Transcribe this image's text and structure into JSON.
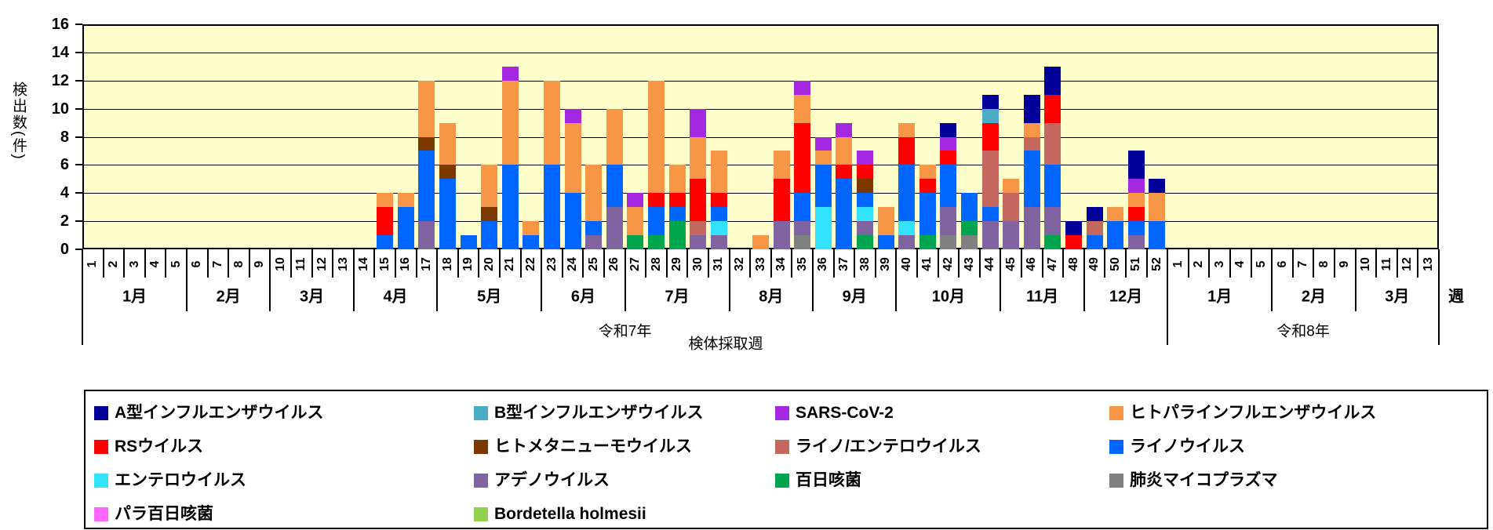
{
  "y_axis": {
    "title": "検出数(件)",
    "ticks": [
      0,
      2,
      4,
      6,
      8,
      10,
      12,
      14,
      16
    ],
    "max": 16
  },
  "x_axis": {
    "title": "検体採取週",
    "unit_label": "週",
    "years": [
      {
        "label": "令和7年",
        "weeks": [
          1,
          2,
          3,
          4,
          5,
          6,
          7,
          8,
          9,
          10,
          11,
          12,
          13,
          14,
          15,
          16,
          17,
          18,
          19,
          20,
          21,
          22,
          23,
          24,
          25,
          26,
          27,
          28,
          29,
          30,
          31,
          32,
          33,
          34,
          35,
          36,
          37,
          38,
          39,
          40,
          41,
          42,
          43,
          44,
          45,
          46,
          47,
          48,
          49,
          50,
          51,
          52
        ],
        "months": [
          {
            "label": "1月",
            "from": 1,
            "to": 5
          },
          {
            "label": "2月",
            "from": 6,
            "to": 9
          },
          {
            "label": "3月",
            "from": 10,
            "to": 13
          },
          {
            "label": "4月",
            "from": 14,
            "to": 17
          },
          {
            "label": "5月",
            "from": 18,
            "to": 22
          },
          {
            "label": "6月",
            "from": 23,
            "to": 26
          },
          {
            "label": "7月",
            "from": 27,
            "to": 31
          },
          {
            "label": "8月",
            "from": 32,
            "to": 35
          },
          {
            "label": "9月",
            "from": 36,
            "to": 39
          },
          {
            "label": "10月",
            "from": 40,
            "to": 44
          },
          {
            "label": "11月",
            "from": 45,
            "to": 48
          },
          {
            "label": "12月",
            "from": 49,
            "to": 52
          }
        ]
      },
      {
        "label": "令和8年",
        "weeks": [
          1,
          2,
          3,
          4,
          5,
          6,
          7,
          8,
          9,
          10,
          11,
          12,
          13
        ],
        "months": [
          {
            "label": "1月",
            "from": 1,
            "to": 5
          },
          {
            "label": "2月",
            "from": 6,
            "to": 9
          },
          {
            "label": "3月",
            "from": 10,
            "to": 13
          }
        ]
      }
    ]
  },
  "legend": {
    "items": [
      {
        "label": "A型インフルエンザウイルス",
        "color": "#000099"
      },
      {
        "label": "B型インフルエンザウイルス",
        "color": "#4BACC6"
      },
      {
        "label": "SARS-CoV-2",
        "color": "#A428E0"
      },
      {
        "label": "ヒトパラインフルエンザウイルス",
        "color": "#F79646"
      },
      {
        "label": "RSウイルス",
        "color": "#FF0000"
      },
      {
        "label": "ヒトメタニューモウイルス",
        "color": "#7B3900"
      },
      {
        "label": "ライノ/エンテロウイルス",
        "color": "#C4685F"
      },
      {
        "label": "ライノウイルス",
        "color": "#0066FF"
      },
      {
        "label": "エンテロウイルス",
        "color": "#33E2FC"
      },
      {
        "label": "アデノウイルス",
        "color": "#8064A2"
      },
      {
        "label": "百日咳菌",
        "color": "#00A550"
      },
      {
        "label": "肺炎マイコプラズマ",
        "color": "#808080"
      },
      {
        "label": "パラ百日咳菌",
        "color": "#FF66FF"
      },
      {
        "label": "Bordetella holmesii",
        "color": "#92D050"
      }
    ]
  },
  "chart_data": {
    "type": "bar",
    "stacked": true,
    "plot_bg": "#FFFFCC",
    "ylabel": "検出数(件)",
    "xlabel": "検体採取週",
    "ylim": [
      0,
      16
    ],
    "ytick_step": 2,
    "grid": true,
    "legend_position": "bottom",
    "stack_order_bottom_to_top": [
      "肺炎マイコプラズマ",
      "百日咳菌",
      "アデノウイルス",
      "エンテロウイルス",
      "ライノウイルス",
      "ライノ/エンテロウイルス",
      "ヒトメタニューモウイルス",
      "RSウイルス",
      "ヒトパラインフルエンザウイルス",
      "SARS-CoV-2",
      "B型インフルエンザウイルス",
      "A型インフルエンザウイルス",
      "パラ百日咳菌",
      "Bordetella holmesii"
    ],
    "values": {
      "令和7年": {
        "15": {
          "ライノウイルス": 1,
          "RSウイルス": 2,
          "ヒトパラインフルエンザウイルス": 1
        },
        "16": {
          "ライノウイルス": 3,
          "ヒトパラインフルエンザウイルス": 1
        },
        "17": {
          "アデノウイルス": 2,
          "ライノウイルス": 5,
          "ヒトメタニューモウイルス": 1,
          "ヒトパラインフルエンザウイルス": 4
        },
        "18": {
          "ライノウイルス": 5,
          "ヒトメタニューモウイルス": 1,
          "ヒトパラインフルエンザウイルス": 3
        },
        "19": {
          "ライノウイルス": 1
        },
        "20": {
          "ライノウイルス": 2,
          "ヒトメタニューモウイルス": 1,
          "ヒトパラインフルエンザウイルス": 3
        },
        "21": {
          "ライノウイルス": 6,
          "ヒトパラインフルエンザウイルス": 6,
          "SARS-CoV-2": 1
        },
        "22": {
          "ライノウイルス": 1,
          "ヒトパラインフルエンザウイルス": 1
        },
        "23": {
          "ライノウイルス": 6,
          "ヒトパラインフルエンザウイルス": 6
        },
        "24": {
          "ライノウイルス": 4,
          "ヒトパラインフルエンザウイルス": 5,
          "SARS-CoV-2": 1
        },
        "25": {
          "アデノウイルス": 1,
          "ライノウイルス": 1,
          "ヒトパラインフルエンザウイルス": 4
        },
        "26": {
          "アデノウイルス": 3,
          "ライノウイルス": 3,
          "ヒトパラインフルエンザウイルス": 4
        },
        "27": {
          "百日咳菌": 1,
          "ヒトパラインフルエンザウイルス": 2,
          "SARS-CoV-2": 1
        },
        "28": {
          "百日咳菌": 1,
          "ライノウイルス": 2,
          "RSウイルス": 1,
          "ヒトパラインフルエンザウイルス": 8
        },
        "29": {
          "百日咳菌": 2,
          "ライノウイルス": 1,
          "RSウイルス": 1,
          "ヒトパラインフルエンザウイルス": 2
        },
        "30": {
          "アデノウイルス": 1,
          "ライノ/エンテロウイルス": 1,
          "RSウイルス": 3,
          "ヒトパラインフルエンザウイルス": 3,
          "SARS-CoV-2": 2
        },
        "31": {
          "アデノウイルス": 1,
          "エンテロウイルス": 1,
          "ライノウイルス": 1,
          "RSウイルス": 1,
          "ヒトパラインフルエンザウイルス": 3
        },
        "33": {
          "ヒトパラインフルエンザウイルス": 1
        },
        "34": {
          "アデノウイルス": 2,
          "RSウイルス": 3,
          "ヒトパラインフルエンザウイルス": 2
        },
        "35": {
          "肺炎マイコプラズマ": 1,
          "アデノウイルス": 1,
          "ライノウイルス": 2,
          "RSウイルス": 5,
          "ヒトパラインフルエンザウイルス": 2,
          "SARS-CoV-2": 1
        },
        "36": {
          "エンテロウイルス": 3,
          "ライノウイルス": 3,
          "ヒトパラインフルエンザウイルス": 1,
          "SARS-CoV-2": 1
        },
        "37": {
          "ライノウイルス": 5,
          "RSウイルス": 1,
          "ヒトパラインフルエンザウイルス": 2,
          "SARS-CoV-2": 1
        },
        "38": {
          "百日咳菌": 1,
          "アデノウイルス": 1,
          "エンテロウイルス": 1,
          "ライノウイルス": 1,
          "ヒトメタニューモウイルス": 1,
          "RSウイルス": 1,
          "SARS-CoV-2": 1
        },
        "39": {
          "ライノウイルス": 1,
          "ヒトパラインフルエンザウイルス": 2
        },
        "40": {
          "アデノウイルス": 1,
          "エンテロウイルス": 1,
          "ライノウイルス": 4,
          "RSウイルス": 2,
          "ヒトパラインフルエンザウイルス": 1
        },
        "41": {
          "百日咳菌": 1,
          "ライノウイルス": 3,
          "RSウイルス": 1,
          "ヒトパラインフルエンザウイルス": 1
        },
        "42": {
          "肺炎マイコプラズマ": 1,
          "アデノウイルス": 2,
          "ライノウイルス": 3,
          "RSウイルス": 1,
          "SARS-CoV-2": 1,
          "A型インフルエンザウイルス": 1
        },
        "43": {
          "肺炎マイコプラズマ": 1,
          "百日咳菌": 1,
          "ライノウイルス": 2
        },
        "44": {
          "アデノウイルス": 2,
          "ライノウイルス": 1,
          "ライノ/エンテロウイルス": 4,
          "RSウイルス": 2,
          "B型インフルエンザウイルス": 1,
          "A型インフルエンザウイルス": 1
        },
        "45": {
          "アデノウイルス": 2,
          "ライノ/エンテロウイルス": 2,
          "ヒトパラインフルエンザウイルス": 1
        },
        "46": {
          "アデノウイルス": 3,
          "ライノウイルス": 4,
          "ライノ/エンテロウイルス": 1,
          "ヒトパラインフルエンザウイルス": 1,
          "A型インフルエンザウイルス": 2
        },
        "47": {
          "百日咳菌": 1,
          "アデノウイルス": 2,
          "ライノウイルス": 3,
          "ライノ/エンテロウイルス": 3,
          "RSウイルス": 2,
          "A型インフルエンザウイルス": 2
        },
        "48": {
          "RSウイルス": 1,
          "A型インフルエンザウイルス": 1
        },
        "49": {
          "ライノウイルス": 1,
          "ライノ/エンテロウイルス": 1,
          "A型インフルエンザウイルス": 1
        },
        "50": {
          "ライノウイルス": 2,
          "ヒトパラインフルエンザウイルス": 1
        },
        "51": {
          "アデノウイルス": 1,
          "ライノウイルス": 1,
          "RSウイルス": 1,
          "ヒトパラインフルエンザウイルス": 1,
          "SARS-CoV-2": 1,
          "A型インフルエンザウイルス": 2
        },
        "52": {
          "ライノウイルス": 2,
          "ヒトパラインフルエンザウイルス": 2,
          "A型インフルエンザウイルス": 1
        }
      },
      "令和8年": {}
    }
  }
}
